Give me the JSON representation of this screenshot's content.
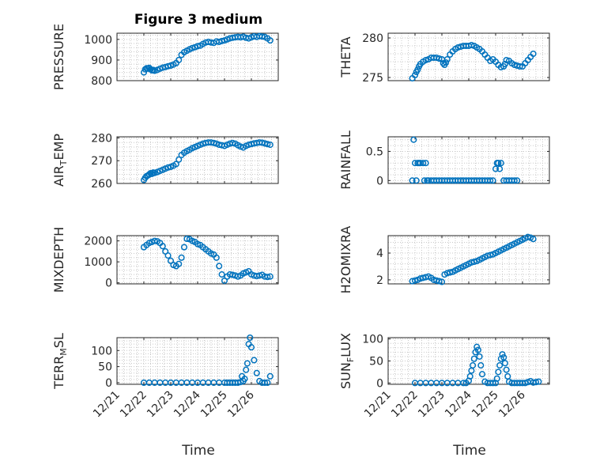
{
  "chart_data": {
    "title": "Figure 3 medium",
    "type": "scatter",
    "x_ticks": [
      "12/21",
      "12/22",
      "12/23",
      "12/24",
      "12/25",
      "12/26"
    ],
    "xlim": [
      0,
      6
    ],
    "xlabel": "Time",
    "marker_color": "#0072BD",
    "grid": true,
    "subplots": [
      {
        "ylabel": "PRESSURE",
        "ylim": [
          800,
          1030
        ],
        "yticks": [
          "800",
          "900",
          "1000"
        ],
        "x": [
          1.0,
          1.05,
          1.1,
          1.15,
          1.2,
          1.25,
          1.3,
          1.35,
          1.4,
          1.5,
          1.6,
          1.7,
          1.8,
          1.9,
          2.0,
          2.1,
          2.2,
          2.3,
          2.4,
          2.5,
          2.6,
          2.7,
          2.8,
          2.9,
          3.0,
          3.1,
          3.2,
          3.3,
          3.4,
          3.5,
          3.6,
          3.7,
          3.8,
          3.9,
          4.0,
          4.1,
          4.2,
          4.3,
          4.4,
          4.5,
          4.6,
          4.7,
          4.8,
          4.9,
          5.0,
          5.1,
          5.2,
          5.3,
          5.4,
          5.5,
          5.6,
          5.7
        ],
        "y": [
          840,
          855,
          860,
          858,
          862,
          855,
          850,
          852,
          848,
          852,
          858,
          863,
          866,
          870,
          873,
          878,
          885,
          900,
          925,
          938,
          945,
          952,
          958,
          962,
          967,
          970,
          978,
          985,
          988,
          985,
          983,
          990,
          988,
          992,
          995,
          1000,
          1005,
          1008,
          1010,
          1012,
          1010,
          1013,
          1008,
          1005,
          1010,
          1015,
          1012,
          1016,
          1014,
          1012,
          1005,
          995
        ]
      },
      {
        "ylabel": "THETA",
        "ylim": [
          274.6,
          280.6
        ],
        "yticks": [
          "275",
          "280"
        ],
        "x": [
          0.9,
          1.0,
          1.05,
          1.1,
          1.15,
          1.2,
          1.3,
          1.4,
          1.5,
          1.6,
          1.7,
          1.8,
          1.9,
          2.0,
          2.05,
          2.1,
          2.15,
          2.2,
          2.3,
          2.4,
          2.5,
          2.6,
          2.7,
          2.8,
          2.9,
          3.0,
          3.1,
          3.2,
          3.3,
          3.4,
          3.5,
          3.6,
          3.7,
          3.8,
          3.9,
          4.0,
          4.1,
          4.2,
          4.3,
          4.35,
          4.4,
          4.5,
          4.6,
          4.7,
          4.8,
          4.9,
          5.0,
          5.1,
          5.2,
          5.3,
          5.4
        ],
        "y": [
          274.9,
          275.3,
          275.7,
          276.0,
          276.4,
          276.7,
          277.0,
          277.2,
          277.3,
          277.5,
          277.5,
          277.5,
          277.4,
          277.3,
          276.8,
          276.6,
          276.9,
          277.3,
          277.9,
          278.3,
          278.6,
          278.8,
          278.9,
          279.0,
          279.0,
          279.0,
          279.1,
          279.0,
          278.8,
          278.6,
          278.3,
          277.9,
          277.5,
          277.1,
          277.3,
          277.0,
          276.6,
          276.3,
          276.4,
          276.7,
          277.2,
          277.1,
          276.8,
          276.6,
          276.5,
          276.4,
          276.4,
          276.8,
          277.2,
          277.6,
          278.0
        ]
      },
      {
        "ylabel": "AIR_TEMP",
        "ylim": [
          260,
          280.5
        ],
        "yticks": [
          "260",
          "270",
          "280"
        ],
        "x": [
          1.0,
          1.05,
          1.1,
          1.15,
          1.2,
          1.25,
          1.3,
          1.35,
          1.4,
          1.5,
          1.6,
          1.7,
          1.8,
          1.9,
          2.0,
          2.1,
          2.2,
          2.3,
          2.4,
          2.5,
          2.6,
          2.7,
          2.8,
          2.9,
          3.0,
          3.1,
          3.2,
          3.3,
          3.4,
          3.5,
          3.6,
          3.7,
          3.8,
          3.9,
          4.0,
          4.1,
          4.2,
          4.3,
          4.4,
          4.5,
          4.6,
          4.7,
          4.8,
          4.9,
          5.0,
          5.1,
          5.2,
          5.3,
          5.4,
          5.5,
          5.6,
          5.7
        ],
        "y": [
          261.5,
          262.5,
          263.2,
          263.5,
          264.0,
          264.5,
          264.2,
          264.8,
          264.6,
          265.0,
          265.5,
          266.0,
          266.5,
          267.0,
          267.3,
          267.8,
          268.5,
          270.5,
          272.5,
          273.5,
          274.2,
          274.8,
          275.5,
          276.0,
          276.5,
          277.0,
          277.5,
          277.8,
          278.0,
          278.0,
          277.8,
          277.5,
          277.0,
          276.8,
          276.5,
          277.0,
          277.5,
          277.8,
          277.5,
          276.8,
          276.2,
          275.8,
          276.5,
          277.0,
          277.3,
          277.6,
          277.8,
          278.0,
          277.9,
          277.6,
          277.3,
          277.0
        ]
      },
      {
        "ylabel": "RAINFALL",
        "ylim": [
          -0.05,
          0.75
        ],
        "yticks": [
          "0",
          "0.5"
        ],
        "x": [
          0.9,
          0.95,
          1.0,
          1.05,
          1.1,
          1.15,
          1.2,
          1.3,
          1.35,
          1.4,
          1.45,
          1.5,
          1.6,
          1.7,
          1.8,
          1.9,
          2.0,
          2.1,
          2.2,
          2.3,
          2.4,
          2.5,
          2.6,
          2.7,
          2.8,
          2.9,
          3.0,
          3.1,
          3.2,
          3.3,
          3.4,
          3.5,
          3.6,
          3.7,
          3.8,
          3.9,
          4.0,
          4.05,
          4.1,
          4.15,
          4.2,
          4.3,
          4.4,
          4.5,
          4.6,
          4.7,
          4.8
        ],
        "y": [
          0.0,
          0.7,
          0.3,
          0.0,
          0.3,
          0.3,
          0.3,
          0.3,
          0.0,
          0.3,
          0.0,
          0.0,
          0.0,
          0.0,
          0.0,
          0.0,
          0.0,
          0.0,
          0.0,
          0.0,
          0.0,
          0.0,
          0.0,
          0.0,
          0.0,
          0.0,
          0.0,
          0.0,
          0.0,
          0.0,
          0.0,
          0.0,
          0.0,
          0.0,
          0.0,
          0.0,
          0.2,
          0.3,
          0.3,
          0.2,
          0.3,
          0.0,
          0.0,
          0.0,
          0.0,
          0.0,
          0.0
        ]
      },
      {
        "ylabel": "MIXDEPTH",
        "ylim": [
          -50,
          2250
        ],
        "yticks": [
          "0",
          "1000",
          "2000"
        ],
        "x": [
          1.0,
          1.1,
          1.2,
          1.3,
          1.4,
          1.5,
          1.6,
          1.7,
          1.8,
          1.9,
          2.0,
          2.1,
          2.2,
          2.3,
          2.4,
          2.5,
          2.6,
          2.7,
          2.8,
          2.9,
          3.0,
          3.1,
          3.2,
          3.3,
          3.4,
          3.5,
          3.6,
          3.7,
          3.8,
          3.9,
          4.0,
          4.1,
          4.2,
          4.3,
          4.4,
          4.5,
          4.6,
          4.7,
          4.8,
          4.9,
          5.0,
          5.1,
          5.2,
          5.3,
          5.4,
          5.5,
          5.6,
          5.7
        ],
        "y": [
          1700,
          1800,
          1900,
          1950,
          2000,
          1980,
          1900,
          1750,
          1500,
          1300,
          1050,
          850,
          800,
          900,
          1200,
          1700,
          2100,
          2080,
          2000,
          1950,
          1850,
          1800,
          1700,
          1600,
          1500,
          1400,
          1350,
          1200,
          800,
          400,
          100,
          300,
          400,
          380,
          350,
          300,
          350,
          450,
          500,
          550,
          400,
          350,
          320,
          350,
          380,
          300,
          280,
          300
        ]
      },
      {
        "ylabel": "H2OMIXRA",
        "ylim": [
          1.7,
          5.3
        ],
        "yticks": [
          "2",
          "4"
        ],
        "x": [
          0.9,
          1.0,
          1.1,
          1.2,
          1.3,
          1.4,
          1.5,
          1.6,
          1.7,
          1.8,
          1.9,
          2.0,
          2.1,
          2.2,
          2.3,
          2.4,
          2.5,
          2.6,
          2.7,
          2.8,
          2.9,
          3.0,
          3.1,
          3.2,
          3.3,
          3.4,
          3.5,
          3.6,
          3.7,
          3.8,
          3.9,
          4.0,
          4.1,
          4.2,
          4.3,
          4.4,
          4.5,
          4.6,
          4.7,
          4.8,
          4.9,
          5.0,
          5.1,
          5.2,
          5.3,
          5.4
        ],
        "y": [
          1.9,
          1.95,
          2.0,
          2.1,
          2.15,
          2.2,
          2.25,
          2.15,
          2.0,
          1.95,
          1.9,
          1.85,
          2.4,
          2.5,
          2.55,
          2.6,
          2.7,
          2.8,
          2.9,
          3.0,
          3.1,
          3.2,
          3.3,
          3.35,
          3.4,
          3.5,
          3.6,
          3.7,
          3.8,
          3.85,
          3.9,
          4.0,
          4.1,
          4.2,
          4.3,
          4.4,
          4.5,
          4.6,
          4.7,
          4.8,
          4.9,
          5.0,
          5.1,
          5.2,
          5.15,
          5.05
        ]
      },
      {
        "ylabel": "TERR_MSL",
        "ylim": [
          -5,
          140
        ],
        "yticks": [
          "0",
          "50",
          "100"
        ],
        "x": [
          1.0,
          1.2,
          1.4,
          1.6,
          1.8,
          2.0,
          2.2,
          2.4,
          2.6,
          2.8,
          3.0,
          3.2,
          3.4,
          3.6,
          3.8,
          4.0,
          4.1,
          4.2,
          4.3,
          4.4,
          4.5,
          4.6,
          4.65,
          4.7,
          4.75,
          4.8,
          4.85,
          4.9,
          4.95,
          5.0,
          5.1,
          5.2,
          5.3,
          5.4,
          5.5,
          5.6,
          5.7
        ],
        "y": [
          0,
          0,
          0,
          0,
          0,
          0,
          0,
          0,
          0,
          0,
          0,
          0,
          0,
          0,
          0,
          0,
          0,
          0,
          0,
          0,
          0,
          2,
          20,
          5,
          12,
          40,
          60,
          120,
          140,
          110,
          70,
          30,
          5,
          0,
          0,
          0,
          20
        ]
      },
      {
        "ylabel": "SUN_FLUX",
        "ylim": [
          -3,
          103
        ],
        "yticks": [
          "0",
          "50",
          "100"
        ],
        "x": [
          1.0,
          1.2,
          1.4,
          1.6,
          1.8,
          2.0,
          2.2,
          2.4,
          2.6,
          2.8,
          2.9,
          3.0,
          3.05,
          3.1,
          3.15,
          3.2,
          3.25,
          3.3,
          3.35,
          3.4,
          3.45,
          3.5,
          3.6,
          3.7,
          3.8,
          3.9,
          4.0,
          4.05,
          4.1,
          4.15,
          4.2,
          4.25,
          4.3,
          4.35,
          4.4,
          4.45,
          4.5,
          4.6,
          4.7,
          4.8,
          4.9,
          5.0,
          5.1,
          5.2,
          5.3,
          5.4,
          5.5,
          5.6
        ],
        "y": [
          0,
          0,
          0,
          0,
          0,
          0,
          0,
          0,
          0,
          0,
          0,
          5,
          15,
          28,
          40,
          55,
          70,
          82,
          75,
          60,
          40,
          20,
          3,
          0,
          0,
          0,
          0,
          10,
          25,
          40,
          55,
          65,
          58,
          45,
          30,
          15,
          3,
          0,
          0,
          0,
          0,
          0,
          0,
          2,
          4,
          1,
          2,
          3
        ]
      }
    ]
  }
}
